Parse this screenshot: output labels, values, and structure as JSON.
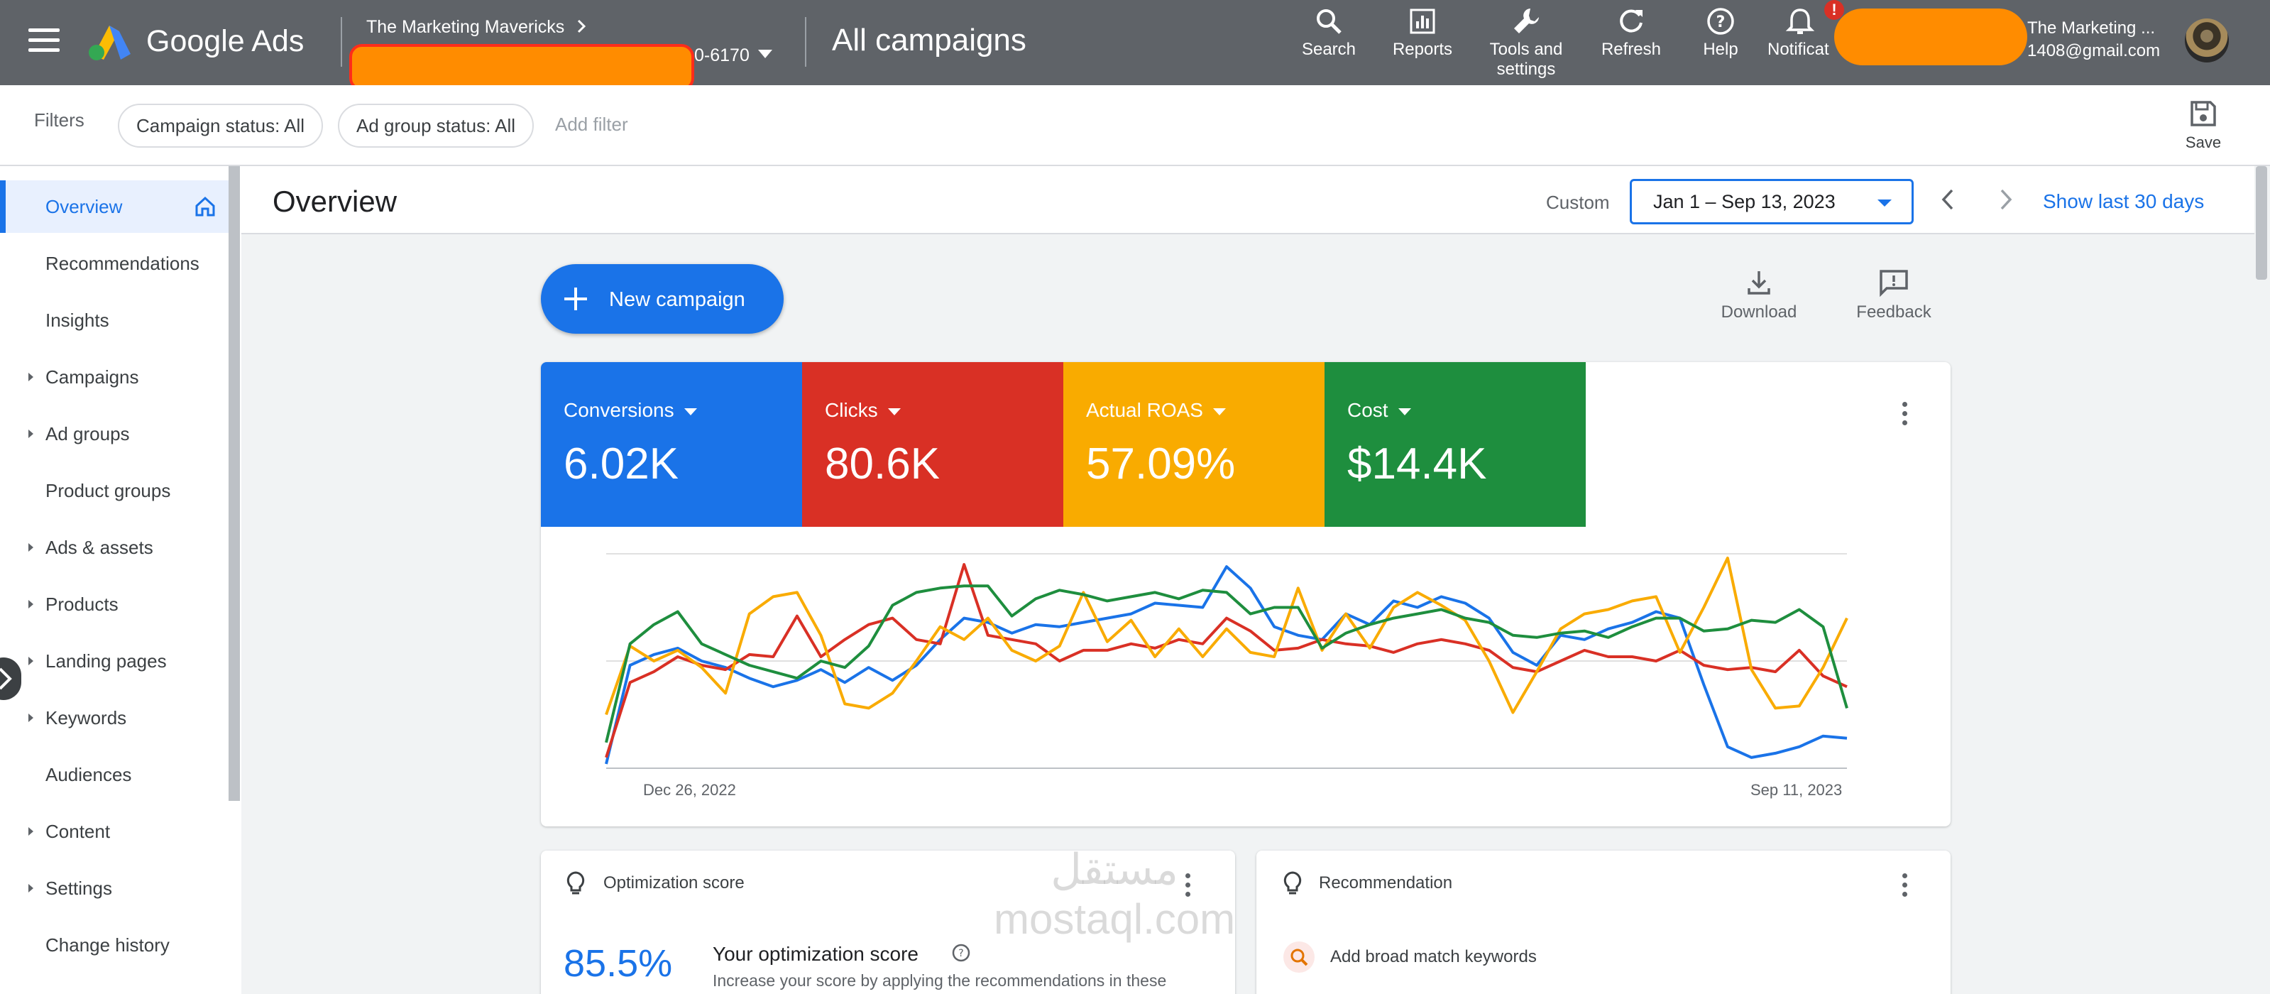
{
  "topbar": {
    "brand": "Google Ads",
    "account_name": "The Marketing Mavericks",
    "account_id_suffix": "0-6170",
    "page_title": "All campaigns",
    "tools": [
      {
        "label": "Search",
        "icon": "search-icon"
      },
      {
        "label": "Reports",
        "icon": "reports-icon"
      },
      {
        "label": "Tools and settings",
        "icon": "wrench-icon"
      },
      {
        "label": "Refresh",
        "icon": "refresh-icon"
      },
      {
        "label": "Help",
        "icon": "help-icon"
      },
      {
        "label": "Notificat",
        "icon": "bell-icon"
      }
    ],
    "notification_badge": "!",
    "user_name": "The Marketing ...",
    "user_email": "1408@gmail.com"
  },
  "filters": {
    "label": "Filters",
    "chips": [
      "Campaign status: All",
      "Ad group status: All"
    ],
    "add_filter": "Add filter",
    "save_label": "Save"
  },
  "sidebar": {
    "items": [
      {
        "label": "Overview",
        "active": true,
        "expandable": false
      },
      {
        "label": "Recommendations",
        "expandable": false
      },
      {
        "label": "Insights",
        "expandable": false
      },
      {
        "label": "Campaigns",
        "expandable": true
      },
      {
        "label": "Ad groups",
        "expandable": true
      },
      {
        "label": "Product groups",
        "expandable": false
      },
      {
        "label": "Ads & assets",
        "expandable": true
      },
      {
        "label": "Products",
        "expandable": true
      },
      {
        "label": "Landing pages",
        "expandable": true
      },
      {
        "label": "Keywords",
        "expandable": true
      },
      {
        "label": "Audiences",
        "expandable": false
      },
      {
        "label": "Content",
        "expandable": true
      },
      {
        "label": "Settings",
        "expandable": true
      },
      {
        "label": "Change history",
        "expandable": false
      }
    ]
  },
  "overview": {
    "title": "Overview",
    "custom_label": "Custom",
    "date_range": "Jan 1 – Sep 13, 2023",
    "show_last": "Show last 30 days",
    "new_campaign": "New campaign",
    "download": "Download",
    "feedback": "Feedback"
  },
  "metrics": [
    {
      "name": "Conversions",
      "value": "6.02K",
      "color": "#1a73e8"
    },
    {
      "name": "Clicks",
      "value": "80.6K",
      "color": "#d93025"
    },
    {
      "name": "Actual ROAS",
      "value": "57.09%",
      "color": "#f9ab00"
    },
    {
      "name": "Cost",
      "value": "$14.4K",
      "color": "#1e8e3e"
    }
  ],
  "chart_data": {
    "type": "line",
    "x_start_label": "Dec 26, 2022",
    "x_end_label": "Sep 11, 2023",
    "ylim": [
      0,
      100
    ],
    "grid": true,
    "series": [
      {
        "color": "#1a73e8",
        "values": [
          2,
          48,
          53,
          56,
          50,
          47,
          42,
          38,
          41,
          46,
          40,
          47,
          41,
          48,
          60,
          70,
          68,
          63,
          67,
          66,
          68,
          70,
          72,
          77,
          76,
          75,
          94,
          84,
          66,
          62,
          60,
          72,
          67,
          78,
          75,
          80,
          77,
          70,
          54,
          48,
          62,
          60,
          65,
          68,
          73,
          70,
          39,
          10,
          5,
          7,
          10,
          15,
          14
        ]
      },
      {
        "color": "#d93025",
        "values": [
          5,
          40,
          45,
          52,
          48,
          46,
          53,
          52,
          71,
          52,
          60,
          67,
          70,
          60,
          58,
          95,
          62,
          60,
          58,
          50,
          55,
          55,
          58,
          56,
          60,
          58,
          70,
          64,
          55,
          56,
          60,
          58,
          57,
          54,
          58,
          60,
          58,
          55,
          47,
          45,
          50,
          55,
          52,
          52,
          50,
          55,
          48,
          46,
          47,
          45,
          55,
          43,
          38
        ]
      },
      {
        "color": "#f9ab00",
        "values": [
          25,
          57,
          50,
          55,
          47,
          35,
          72,
          80,
          82,
          62,
          30,
          28,
          35,
          50,
          66,
          60,
          70,
          55,
          50,
          57,
          82,
          59,
          69,
          52,
          65,
          52,
          65,
          54,
          52,
          84,
          55,
          72,
          56,
          75,
          82,
          76,
          69,
          50,
          26,
          45,
          65,
          72,
          74,
          78,
          80,
          54,
          75,
          98,
          46,
          28,
          29,
          47,
          70
        ]
      },
      {
        "color": "#1e8e3e",
        "values": [
          12,
          58,
          67,
          73,
          58,
          53,
          48,
          45,
          42,
          50,
          47,
          57,
          76,
          82,
          84,
          85,
          85,
          71,
          79,
          83,
          81,
          78,
          80,
          82,
          79,
          83,
          82,
          72,
          75,
          75,
          56,
          63,
          67,
          70,
          72,
          74,
          70,
          68,
          62,
          61,
          63,
          64,
          61,
          66,
          70,
          70,
          64,
          65,
          69,
          68,
          74,
          66,
          28
        ]
      }
    ]
  },
  "cards": {
    "opt_title": "Optimization score",
    "opt_value": "85.5%",
    "opt_heading": "Your optimization score",
    "opt_sub": "Increase your score by applying the recommendations in these",
    "rec_title": "Recommendation",
    "rec_item": "Add broad match keywords"
  },
  "watermark": {
    "line1": "مستقل",
    "line2": "mostaql.com"
  }
}
